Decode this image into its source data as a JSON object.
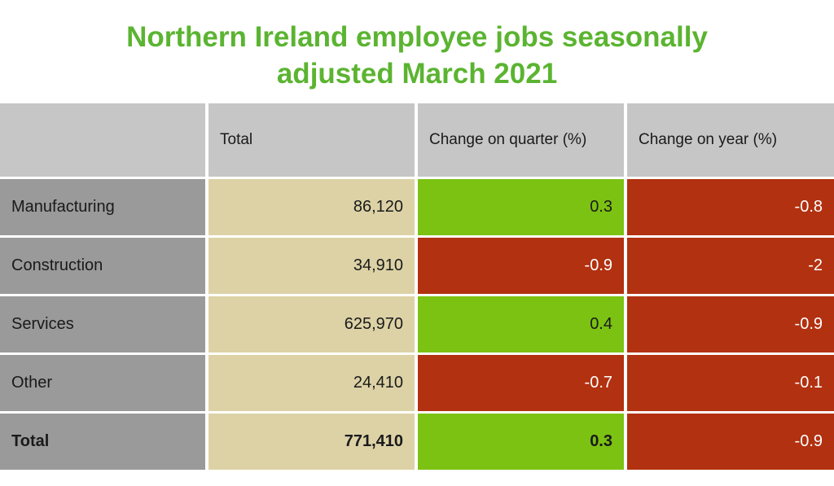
{
  "page": {
    "title": "Northern Ireland employee jobs seasonally adjusted March 2021"
  },
  "colors": {
    "title_green": "#5bb431",
    "header_gray": "#c6c6c6",
    "label_gray": "#9a9a9a",
    "total_tan": "#ddd2a6",
    "positive_green": "#7cc212",
    "negative_red": "#b23110"
  },
  "table": {
    "headers": [
      {
        "text": ""
      },
      {
        "text": "Total"
      },
      {
        "text": "Change on quarter (%)"
      },
      {
        "text": "Change on year (%)"
      }
    ],
    "rows": [
      {
        "label": "Manufacturing",
        "total": "86,120",
        "quarter": {
          "text": "0.3",
          "tone": "positive"
        },
        "year": {
          "text": "-0.8",
          "tone": "negative"
        },
        "row_class": ""
      },
      {
        "label": "Construction",
        "total": "34,910",
        "quarter": {
          "text": "-0.9",
          "tone": "negative"
        },
        "year": {
          "text": "-2",
          "tone": "negative"
        },
        "row_class": ""
      },
      {
        "label": "Services",
        "total": "625,970",
        "quarter": {
          "text": "0.4",
          "tone": "positive"
        },
        "year": {
          "text": "-0.9",
          "tone": "negative"
        },
        "row_class": ""
      },
      {
        "label": "Other",
        "total": "24,410",
        "quarter": {
          "text": "-0.7",
          "tone": "negative"
        },
        "year": {
          "text": "-0.1",
          "tone": "negative"
        },
        "row_class": ""
      },
      {
        "label": "Total",
        "total": "771,410",
        "quarter": {
          "text": "0.3",
          "tone": "positive"
        },
        "year": {
          "text": "-0.9",
          "tone": "negative"
        },
        "row_class": "total-row"
      }
    ]
  },
  "chart_data": {
    "type": "table",
    "title": "Northern Ireland employee jobs seasonally adjusted March 2021",
    "columns": [
      "",
      "Total",
      "Change on quarter (%)",
      "Change on year (%)"
    ],
    "rows": [
      [
        "Manufacturing",
        86120,
        0.3,
        -0.8
      ],
      [
        "Construction",
        34910,
        -0.9,
        -2
      ],
      [
        "Services",
        625970,
        0.4,
        -0.9
      ],
      [
        "Other",
        24410,
        -0.7,
        -0.1
      ],
      [
        "Total",
        771410,
        0.3,
        -0.9
      ]
    ],
    "value_color_rule": "positive changes shown green (#7cc212, black text), negative changes shown red (#b23110, white text)"
  }
}
